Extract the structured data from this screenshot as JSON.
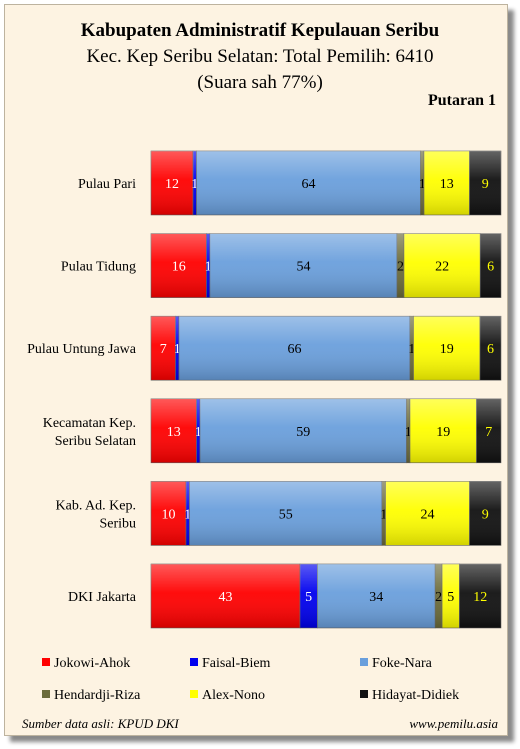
{
  "header": {
    "title": "Kabupaten Administratif Kepulauan Seribu",
    "subtitle": "Kec. Kep Seribu Selatan: Total Pemilih: 6410",
    "subtitle2": "(Suara sah 77%)",
    "round": "Putaran 1"
  },
  "footer": {
    "source": "Sumber data asli: KPUD DKI",
    "website": "www.pemilu.asia"
  },
  "chart_data": {
    "type": "bar",
    "orientation": "horizontal",
    "stacked": true,
    "categories": [
      [
        "Pulau Pari"
      ],
      [
        "Pulau Tidung"
      ],
      [
        "Pulau Untung Jawa"
      ],
      [
        "Kecamatan Kep.",
        "Seribu Selatan"
      ],
      [
        "Kab. Ad. Kep.",
        "Seribu"
      ],
      [
        "DKI Jakarta"
      ]
    ],
    "series": [
      {
        "name": "Jokowi-Ahok",
        "color": "#ff0000",
        "label_color": "#ffffff",
        "values": [
          12,
          16,
          7,
          13,
          10,
          43
        ]
      },
      {
        "name": "Faisal-Biem",
        "color": "#0000ee",
        "label_color": "#ffffff",
        "values": [
          1,
          1,
          1,
          1,
          1,
          5
        ]
      },
      {
        "name": "Foke-Nara",
        "color": "#6a9fdc",
        "label_color": "#000000",
        "values": [
          64,
          54,
          66,
          59,
          55,
          34
        ]
      },
      {
        "name": "Hendardji-Riza",
        "color": "#6b6b3a",
        "label_color": "#000000",
        "values": [
          1,
          2,
          1,
          1,
          1,
          2
        ]
      },
      {
        "name": "Alex-Nono",
        "color": "#ffff00",
        "label_color": "#000000",
        "values": [
          13,
          22,
          19,
          19,
          24,
          5
        ]
      },
      {
        "name": "Hidayat-Didiek",
        "color": "#111111",
        "label_color": "#ffff00",
        "values": [
          9,
          6,
          6,
          7,
          9,
          12
        ]
      }
    ],
    "unit": "percent",
    "legend_position": "bottom",
    "grid": false
  }
}
